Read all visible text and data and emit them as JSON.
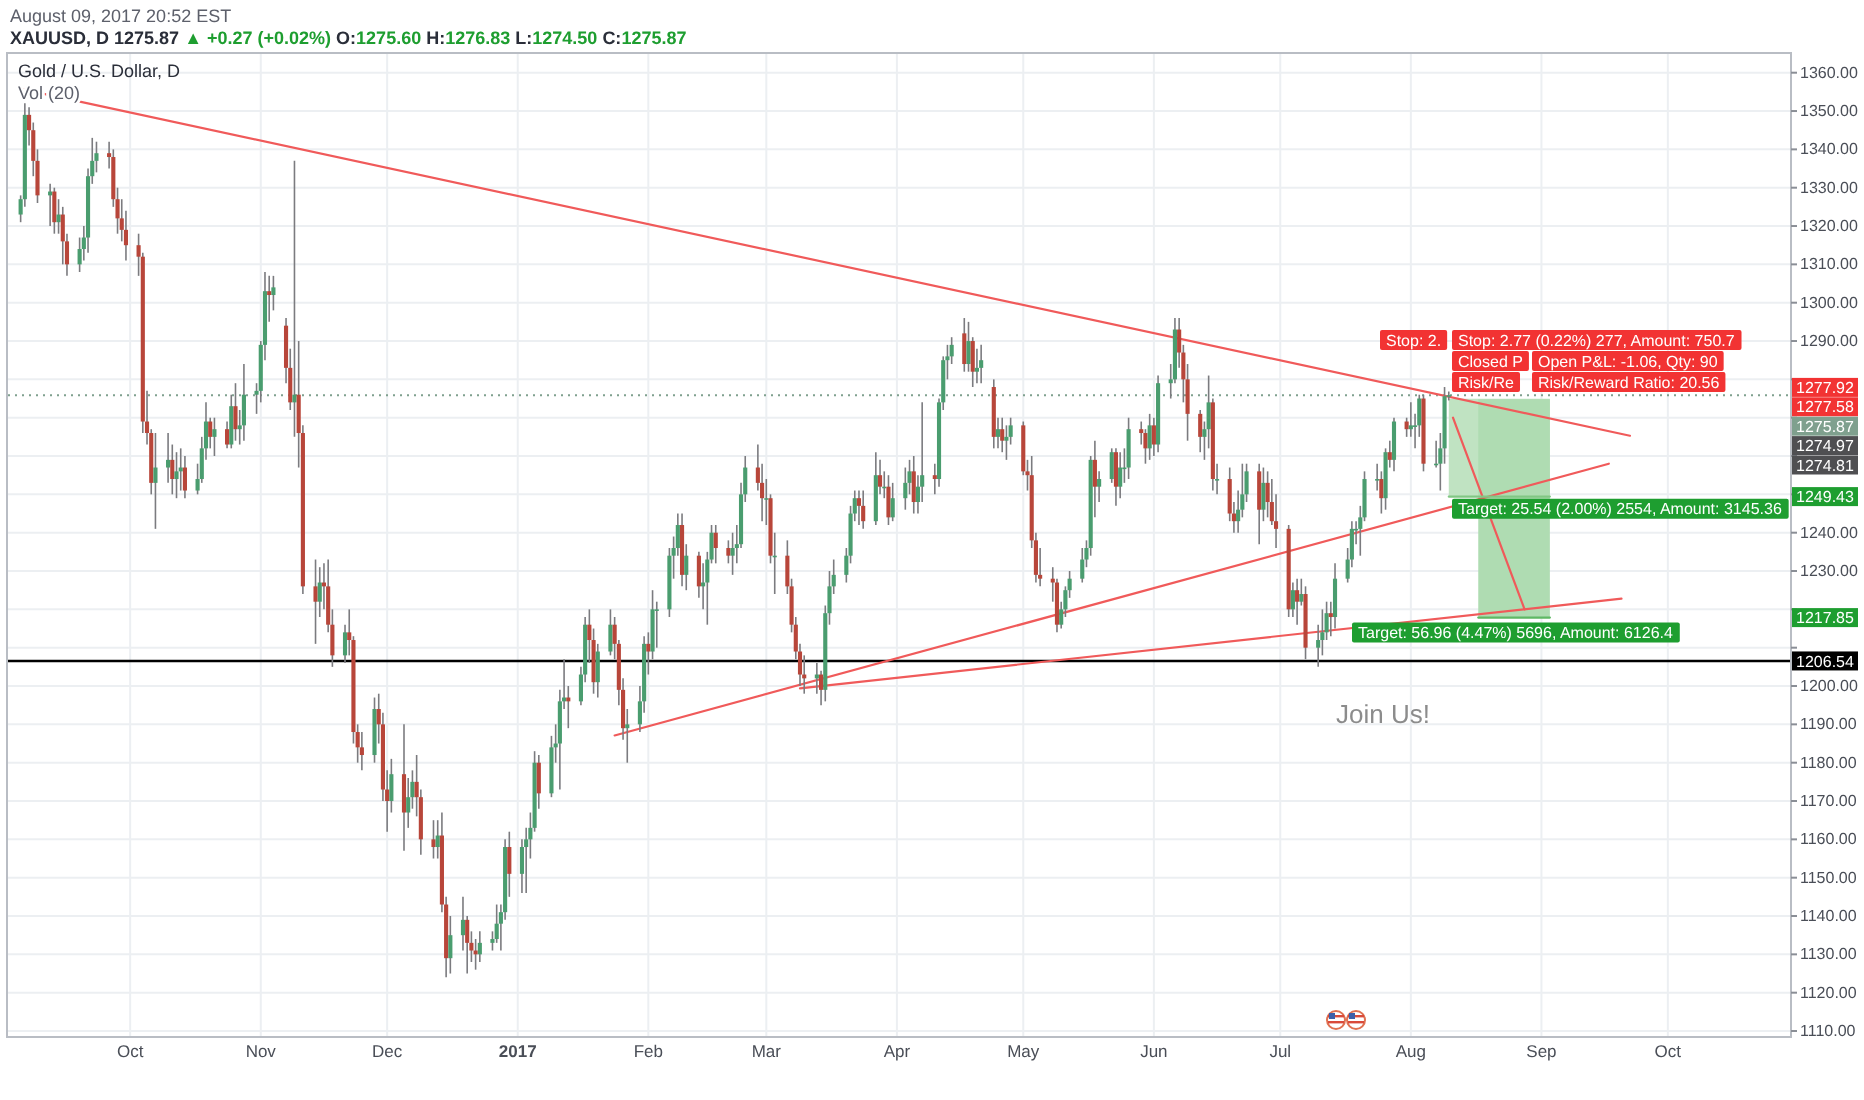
{
  "chart_data": {
    "type": "candlestick",
    "title": "Gold / U.S. Dollar, D",
    "subtitle": "XAUUSD, D 1275.87 ▲ +0.27 (+0.02%) O:1275.60 H:1276.83 L:1274.50 C:1275.87",
    "annotations": [
      "August 09, 2017 20:52 EST",
      "Vol (20)",
      "Join Us!",
      "Stop: 2.",
      "Stop: 2.77 (0.22%) 277, Amount: 750.7",
      "Closed P",
      "Open P&L: -1.06, Qty: 90",
      "Risk/Re",
      "Risk/Reward Ratio: 20.56",
      "Target: 25.54 (2.00%) 2554, Amount: 3145.36",
      "Target: 56.96 (4.47%) 5696, Amount: 6126.4",
      "1277.92",
      "1277.58",
      "1274.97",
      "1274.81",
      "1249.43",
      "1217.85"
    ],
    "x": [
      "2016-09-05",
      "2016-09-06",
      "2016-09-07",
      "2016-09-08",
      "2016-09-09",
      "2016-09-12",
      "2016-09-13",
      "2016-09-14",
      "2016-09-15",
      "2016-09-16",
      "2016-09-19",
      "2016-09-20",
      "2016-09-21",
      "2016-09-22",
      "2016-09-23",
      "2016-09-26",
      "2016-09-27",
      "2016-09-28",
      "2016-09-29",
      "2016-09-30",
      "2016-10-03",
      "2016-10-04",
      "2016-10-05",
      "2016-10-06",
      "2016-10-07",
      "2016-10-10",
      "2016-10-11",
      "2016-10-12",
      "2016-10-13",
      "2016-10-14",
      "2016-10-17",
      "2016-10-18",
      "2016-10-19",
      "2016-10-20",
      "2016-10-21",
      "2016-10-24",
      "2016-10-25",
      "2016-10-26",
      "2016-10-27",
      "2016-10-28",
      "2016-10-31",
      "2016-11-01",
      "2016-11-02",
      "2016-11-03",
      "2016-11-04",
      "2016-11-07",
      "2016-11-08",
      "2016-11-09",
      "2016-11-10",
      "2016-11-11",
      "2016-11-14",
      "2016-11-15",
      "2016-11-16",
      "2016-11-17",
      "2016-11-18",
      "2016-11-21",
      "2016-11-22",
      "2016-11-23",
      "2016-11-24",
      "2016-11-25",
      "2016-11-28",
      "2016-11-29",
      "2016-11-30",
      "2016-12-01",
      "2016-12-02",
      "2016-12-05",
      "2016-12-06",
      "2016-12-07",
      "2016-12-08",
      "2016-12-09",
      "2016-12-12",
      "2016-12-13",
      "2016-12-14",
      "2016-12-15",
      "2016-12-16",
      "2016-12-19",
      "2016-12-20",
      "2016-12-21",
      "2016-12-22",
      "2016-12-23",
      "2016-12-26",
      "2016-12-27",
      "2016-12-28",
      "2016-12-29",
      "2016-12-30",
      "2017-01-02",
      "2017-01-03",
      "2017-01-04",
      "2017-01-05",
      "2017-01-06",
      "2017-01-09",
      "2017-01-10",
      "2017-01-11",
      "2017-01-12",
      "2017-01-13",
      "2017-01-16",
      "2017-01-17",
      "2017-01-18",
      "2017-01-19",
      "2017-01-20",
      "2017-01-23",
      "2017-01-24",
      "2017-01-25",
      "2017-01-26",
      "2017-01-27",
      "2017-01-30",
      "2017-01-31",
      "2017-02-01",
      "2017-02-02",
      "2017-02-03",
      "2017-02-06",
      "2017-02-07",
      "2017-02-08",
      "2017-02-09",
      "2017-02-10",
      "2017-02-13",
      "2017-02-14",
      "2017-02-15",
      "2017-02-16",
      "2017-02-17",
      "2017-02-20",
      "2017-02-21",
      "2017-02-22",
      "2017-02-23",
      "2017-02-24",
      "2017-02-27",
      "2017-02-28",
      "2017-03-01",
      "2017-03-02",
      "2017-03-03",
      "2017-03-06",
      "2017-03-07",
      "2017-03-08",
      "2017-03-09",
      "2017-03-10",
      "2017-03-13",
      "2017-03-14",
      "2017-03-15",
      "2017-03-16",
      "2017-03-17",
      "2017-03-20",
      "2017-03-21",
      "2017-03-22",
      "2017-03-23",
      "2017-03-24",
      "2017-03-27",
      "2017-03-28",
      "2017-03-29",
      "2017-03-30",
      "2017-03-31",
      "2017-04-03",
      "2017-04-04",
      "2017-04-05",
      "2017-04-06",
      "2017-04-07",
      "2017-04-10",
      "2017-04-11",
      "2017-04-12",
      "2017-04-13",
      "2017-04-14",
      "2017-04-17",
      "2017-04-18",
      "2017-04-19",
      "2017-04-20",
      "2017-04-21",
      "2017-04-24",
      "2017-04-25",
      "2017-04-26",
      "2017-04-27",
      "2017-04-28",
      "2017-05-01",
      "2017-05-02",
      "2017-05-03",
      "2017-05-04",
      "2017-05-05",
      "2017-05-08",
      "2017-05-09",
      "2017-05-10",
      "2017-05-11",
      "2017-05-12",
      "2017-05-15",
      "2017-05-16",
      "2017-05-17",
      "2017-05-18",
      "2017-05-19",
      "2017-05-22",
      "2017-05-23",
      "2017-05-24",
      "2017-05-25",
      "2017-05-26",
      "2017-05-29",
      "2017-05-30",
      "2017-05-31",
      "2017-06-01",
      "2017-06-02",
      "2017-06-05",
      "2017-06-06",
      "2017-06-07",
      "2017-06-08",
      "2017-06-09",
      "2017-06-12",
      "2017-06-13",
      "2017-06-14",
      "2017-06-15",
      "2017-06-16",
      "2017-06-19",
      "2017-06-20",
      "2017-06-21",
      "2017-06-22",
      "2017-06-23",
      "2017-06-26",
      "2017-06-27",
      "2017-06-28",
      "2017-06-29",
      "2017-06-30",
      "2017-07-03",
      "2017-07-04",
      "2017-07-05",
      "2017-07-06",
      "2017-07-07",
      "2017-07-10",
      "2017-07-11",
      "2017-07-12",
      "2017-07-13",
      "2017-07-14",
      "2017-07-17",
      "2017-07-18",
      "2017-07-19",
      "2017-07-20",
      "2017-07-21",
      "2017-07-24",
      "2017-07-25",
      "2017-07-26",
      "2017-07-27",
      "2017-07-28",
      "2017-07-31",
      "2017-08-01",
      "2017-08-02",
      "2017-08-03",
      "2017-08-04",
      "2017-08-07",
      "2017-08-08",
      "2017-08-09",
      "2017-08-10"
    ],
    "ohlc": [
      [
        1323,
        1328,
        1321,
        1327
      ],
      [
        1327,
        1352,
        1325,
        1349
      ],
      [
        1349,
        1351,
        1341,
        1345
      ],
      [
        1345,
        1347,
        1333,
        1337
      ],
      [
        1337,
        1340,
        1326,
        1328
      ],
      [
        1328,
        1331,
        1320,
        1329
      ],
      [
        1329,
        1330,
        1318,
        1321
      ],
      [
        1321,
        1327,
        1318,
        1323
      ],
      [
        1323,
        1325,
        1310,
        1316
      ],
      [
        1316,
        1318,
        1307,
        1310
      ],
      [
        1310,
        1317,
        1308,
        1314
      ],
      [
        1314,
        1320,
        1311,
        1317
      ],
      [
        1317,
        1335,
        1313,
        1333
      ],
      [
        1333,
        1343,
        1331,
        1337
      ],
      [
        1337,
        1342,
        1334,
        1339
      ],
      [
        1339,
        1342,
        1335,
        1338
      ],
      [
        1338,
        1340,
        1325,
        1327
      ],
      [
        1327,
        1330,
        1318,
        1322
      ],
      [
        1322,
        1327,
        1316,
        1319
      ],
      [
        1319,
        1324,
        1311,
        1315
      ],
      [
        1315,
        1318,
        1307,
        1312
      ],
      [
        1312,
        1313,
        1266,
        1269
      ],
      [
        1269,
        1277,
        1263,
        1266
      ],
      [
        1266,
        1267,
        1250,
        1253
      ],
      [
        1253,
        1266,
        1241,
        1257
      ],
      [
        1257,
        1266,
        1253,
        1259
      ],
      [
        1259,
        1263,
        1250,
        1254
      ],
      [
        1254,
        1261,
        1249,
        1256
      ],
      [
        1256,
        1262,
        1251,
        1257
      ],
      [
        1257,
        1260,
        1249,
        1251
      ],
      [
        1251,
        1258,
        1250,
        1254
      ],
      [
        1254,
        1265,
        1253,
        1262
      ],
      [
        1262,
        1274,
        1259,
        1269
      ],
      [
        1269,
        1270,
        1262,
        1265
      ],
      [
        1265,
        1270,
        1260,
        1267
      ],
      [
        1267,
        1269,
        1262,
        1263
      ],
      [
        1263,
        1276,
        1262,
        1273
      ],
      [
        1273,
        1279,
        1264,
        1267
      ],
      [
        1267,
        1272,
        1263,
        1268
      ],
      [
        1268,
        1284,
        1264,
        1276
      ],
      [
        1276,
        1279,
        1271,
        1277
      ],
      [
        1277,
        1290,
        1274,
        1289
      ],
      [
        1289,
        1308,
        1285,
        1303
      ],
      [
        1303,
        1307,
        1295,
        1302
      ],
      [
        1302,
        1307,
        1298,
        1304
      ],
      [
        1294,
        1296,
        1279,
        1283
      ],
      [
        1283,
        1288,
        1272,
        1274
      ],
      [
        1274,
        1337,
        1265,
        1276
      ],
      [
        1276,
        1290,
        1257,
        1266
      ],
      [
        1266,
        1268,
        1224,
        1226
      ],
      [
        1226,
        1233,
        1211,
        1222
      ],
      [
        1222,
        1231,
        1218,
        1227
      ],
      [
        1227,
        1232,
        1220,
        1226
      ],
      [
        1226,
        1233,
        1214,
        1216
      ],
      [
        1216,
        1220,
        1205,
        1208
      ],
      [
        1208,
        1216,
        1206,
        1214
      ],
      [
        1214,
        1220,
        1208,
        1212
      ],
      [
        1212,
        1213,
        1185,
        1188
      ],
      [
        1188,
        1190,
        1180,
        1184
      ],
      [
        1184,
        1188,
        1178,
        1182
      ],
      [
        1182,
        1197,
        1180,
        1194
      ],
      [
        1194,
        1198,
        1185,
        1190
      ],
      [
        1190,
        1193,
        1170,
        1173
      ],
      [
        1173,
        1178,
        1162,
        1170
      ],
      [
        1170,
        1181,
        1167,
        1177
      ],
      [
        1177,
        1190,
        1157,
        1167
      ],
      [
        1167,
        1176,
        1163,
        1171
      ],
      [
        1171,
        1178,
        1168,
        1175
      ],
      [
        1175,
        1182,
        1166,
        1171
      ],
      [
        1171,
        1173,
        1156,
        1160
      ],
      [
        1160,
        1165,
        1155,
        1158
      ],
      [
        1158,
        1165,
        1155,
        1161
      ],
      [
        1161,
        1167,
        1141,
        1143
      ],
      [
        1143,
        1145,
        1124,
        1129
      ],
      [
        1129,
        1140,
        1125,
        1135
      ],
      [
        1135,
        1145,
        1131,
        1139
      ],
      [
        1139,
        1140,
        1125,
        1133
      ],
      [
        1133,
        1136,
        1128,
        1131
      ],
      [
        1131,
        1134,
        1126,
        1130
      ],
      [
        1130,
        1136,
        1128,
        1133
      ],
      [
        1133,
        1136,
        1131,
        1134
      ],
      [
        1134,
        1143,
        1133,
        1138
      ],
      [
        1138,
        1143,
        1131,
        1141
      ],
      [
        1141,
        1160,
        1139,
        1158
      ],
      [
        1158,
        1162,
        1145,
        1151
      ],
      [
        1151,
        1160,
        1146,
        1158
      ],
      [
        1158,
        1163,
        1146,
        1160
      ],
      [
        1160,
        1167,
        1155,
        1163
      ],
      [
        1163,
        1183,
        1162,
        1180
      ],
      [
        1180,
        1182,
        1168,
        1172
      ],
      [
        1172,
        1187,
        1171,
        1184
      ],
      [
        1184,
        1190,
        1180,
        1185
      ],
      [
        1185,
        1199,
        1173,
        1196
      ],
      [
        1196,
        1207,
        1194,
        1197
      ],
      [
        1197,
        1200,
        1189,
        1196
      ],
      [
        1196,
        1205,
        1195,
        1203
      ],
      [
        1203,
        1218,
        1201,
        1216
      ],
      [
        1216,
        1220,
        1206,
        1212
      ],
      [
        1212,
        1215,
        1198,
        1201
      ],
      [
        1201,
        1211,
        1197,
        1209
      ],
      [
        1209,
        1220,
        1208,
        1216
      ],
      [
        1216,
        1218,
        1207,
        1211
      ],
      [
        1211,
        1212,
        1195,
        1199
      ],
      [
        1199,
        1202,
        1186,
        1189
      ],
      [
        1189,
        1194,
        1180,
        1190
      ],
      [
        1190,
        1200,
        1188,
        1196
      ],
      [
        1196,
        1213,
        1193,
        1211
      ],
      [
        1211,
        1214,
        1203,
        1209
      ],
      [
        1209,
        1225,
        1207,
        1220
      ],
      [
        1220,
        1222,
        1210,
        1220
      ],
      [
        1220,
        1236,
        1218,
        1234
      ],
      [
        1234,
        1239,
        1228,
        1236
      ],
      [
        1236,
        1245,
        1234,
        1242
      ],
      [
        1242,
        1245,
        1226,
        1229
      ],
      [
        1229,
        1237,
        1225,
        1234
      ],
      [
        1234,
        1235,
        1223,
        1226
      ],
      [
        1226,
        1232,
        1220,
        1227
      ],
      [
        1227,
        1235,
        1216,
        1233
      ],
      [
        1233,
        1242,
        1232,
        1240
      ],
      [
        1240,
        1242,
        1232,
        1236
      ],
      [
        1236,
        1238,
        1232,
        1234
      ],
      [
        1234,
        1240,
        1229,
        1236
      ],
      [
        1236,
        1242,
        1232,
        1237
      ],
      [
        1237,
        1253,
        1236,
        1250
      ],
      [
        1250,
        1260,
        1248,
        1257
      ],
      [
        1257,
        1263,
        1251,
        1253
      ],
      [
        1253,
        1258,
        1243,
        1249
      ],
      [
        1249,
        1254,
        1242,
        1249
      ],
      [
        1249,
        1250,
        1232,
        1234
      ],
      [
        1234,
        1240,
        1224,
        1234
      ],
      [
        1234,
        1238,
        1224,
        1226
      ],
      [
        1226,
        1228,
        1214,
        1216
      ],
      [
        1216,
        1218,
        1207,
        1209
      ],
      [
        1209,
        1211,
        1200,
        1203
      ],
      [
        1203,
        1208,
        1198,
        1202
      ],
      [
        1202,
        1206,
        1198,
        1203
      ],
      [
        1203,
        1204,
        1195,
        1199
      ],
      [
        1199,
        1221,
        1196,
        1219
      ],
      [
        1219,
        1230,
        1216,
        1226
      ],
      [
        1226,
        1233,
        1224,
        1229
      ],
      [
        1229,
        1236,
        1227,
        1234
      ],
      [
        1234,
        1247,
        1232,
        1245
      ],
      [
        1245,
        1251,
        1243,
        1249
      ],
      [
        1249,
        1251,
        1242,
        1247
      ],
      [
        1247,
        1251,
        1241,
        1243
      ],
      [
        1243,
        1261,
        1242,
        1255
      ],
      [
        1255,
        1259,
        1250,
        1252
      ],
      [
        1252,
        1256,
        1249,
        1252
      ],
      [
        1252,
        1255,
        1242,
        1244
      ],
      [
        1244,
        1253,
        1243,
        1249
      ],
      [
        1249,
        1257,
        1246,
        1253
      ],
      [
        1253,
        1259,
        1250,
        1256
      ],
      [
        1256,
        1260,
        1245,
        1248
      ],
      [
        1248,
        1255,
        1245,
        1252
      ],
      [
        1252,
        1274,
        1248,
        1255
      ],
      [
        1255,
        1258,
        1250,
        1254
      ],
      [
        1254,
        1275,
        1252,
        1274
      ],
      [
        1274,
        1286,
        1272,
        1285
      ],
      [
        1285,
        1289,
        1280,
        1286
      ],
      [
        1286,
        1291,
        1284,
        1289
      ],
      [
        1292,
        1296,
        1282,
        1284
      ],
      [
        1284,
        1295,
        1282,
        1290
      ],
      [
        1290,
        1291,
        1278,
        1282
      ],
      [
        1282,
        1288,
        1279,
        1283
      ],
      [
        1283,
        1289,
        1279,
        1285
      ],
      [
        1278,
        1280,
        1262,
        1265
      ],
      [
        1265,
        1270,
        1262,
        1267
      ],
      [
        1267,
        1270,
        1261,
        1264
      ],
      [
        1264,
        1268,
        1259,
        1265
      ],
      [
        1265,
        1270,
        1263,
        1268
      ],
      [
        1268,
        1269,
        1255,
        1256
      ],
      [
        1256,
        1259,
        1251,
        1255
      ],
      [
        1255,
        1260,
        1236,
        1238
      ],
      [
        1238,
        1240,
        1227,
        1229
      ],
      [
        1229,
        1236,
        1226,
        1228
      ],
      [
        1228,
        1231,
        1222,
        1227
      ],
      [
        1227,
        1228,
        1214,
        1216
      ],
      [
        1216,
        1222,
        1215,
        1220
      ],
      [
        1220,
        1226,
        1218,
        1225
      ],
      [
        1225,
        1230,
        1223,
        1228
      ],
      [
        1228,
        1236,
        1227,
        1233
      ],
      [
        1233,
        1238,
        1231,
        1236
      ],
      [
        1236,
        1260,
        1234,
        1259
      ],
      [
        1259,
        1264,
        1244,
        1252
      ],
      [
        1252,
        1256,
        1248,
        1254
      ],
      [
        1254,
        1262,
        1253,
        1261
      ],
      [
        1261,
        1262,
        1247,
        1252
      ],
      [
        1252,
        1261,
        1249,
        1257
      ],
      [
        1257,
        1262,
        1253,
        1257
      ],
      [
        1257,
        1270,
        1254,
        1267
      ],
      [
        1267,
        1269,
        1263,
        1266
      ],
      [
        1266,
        1267,
        1258,
        1262
      ],
      [
        1262,
        1271,
        1259,
        1268
      ],
      [
        1268,
        1270,
        1260,
        1263
      ],
      [
        1263,
        1281,
        1261,
        1279
      ],
      [
        1279,
        1284,
        1275,
        1280
      ],
      [
        1280,
        1296,
        1279,
        1293
      ],
      [
        1293,
        1296,
        1283,
        1287
      ],
      [
        1287,
        1289,
        1274,
        1280
      ],
      [
        1280,
        1284,
        1264,
        1271
      ],
      [
        1271,
        1272,
        1261,
        1265
      ],
      [
        1265,
        1269,
        1259,
        1267
      ],
      [
        1267,
        1281,
        1262,
        1274
      ],
      [
        1274,
        1275,
        1251,
        1254
      ],
      [
        1254,
        1258,
        1250,
        1254
      ],
      [
        1254,
        1257,
        1243,
        1245
      ],
      [
        1245,
        1248,
        1240,
        1243
      ],
      [
        1243,
        1251,
        1240,
        1246
      ],
      [
        1246,
        1258,
        1244,
        1250
      ],
      [
        1250,
        1258,
        1248,
        1256
      ],
      [
        1256,
        1258,
        1237,
        1246
      ],
      [
        1246,
        1257,
        1243,
        1253
      ],
      [
        1253,
        1256,
        1244,
        1248
      ],
      [
        1248,
        1254,
        1242,
        1243
      ],
      [
        1243,
        1250,
        1236,
        1241
      ],
      [
        1241,
        1242,
        1218,
        1220
      ],
      [
        1220,
        1227,
        1218,
        1225
      ],
      [
        1225,
        1228,
        1216,
        1222
      ],
      [
        1222,
        1228,
        1221,
        1224
      ],
      [
        1224,
        1226,
        1207,
        1210
      ],
      [
        1210,
        1216,
        1205,
        1212
      ],
      [
        1212,
        1220,
        1208,
        1214
      ],
      [
        1214,
        1222,
        1212,
        1219
      ],
      [
        1219,
        1222,
        1213,
        1218
      ],
      [
        1218,
        1232,
        1215,
        1228
      ],
      [
        1228,
        1236,
        1227,
        1233
      ],
      [
        1233,
        1243,
        1231,
        1241
      ],
      [
        1241,
        1243,
        1237,
        1241
      ],
      [
        1241,
        1247,
        1234,
        1244
      ],
      [
        1244,
        1256,
        1243,
        1254
      ],
      [
        1254,
        1258,
        1251,
        1254
      ],
      [
        1254,
        1256,
        1245,
        1249
      ],
      [
        1249,
        1262,
        1246,
        1261
      ],
      [
        1261,
        1264,
        1257,
        1259
      ],
      [
        1259,
        1270,
        1256,
        1269
      ],
      [
        1269,
        1270,
        1265,
        1267
      ],
      [
        1267,
        1274,
        1265,
        1268
      ],
      [
        1268,
        1271,
        1262,
        1268
      ],
      [
        1268,
        1276,
        1265,
        1275
      ],
      [
        1275,
        1276,
        1256,
        1258
      ],
      [
        1258,
        1264,
        1257,
        1258
      ],
      [
        1258,
        1266,
        1251,
        1262
      ],
      [
        1262,
        1278,
        1258,
        1275.6
      ],
      [
        1275.6,
        1276.83,
        1274.5,
        1275.87
      ]
    ],
    "series": [
      {
        "type": "line",
        "color": "#f05a5a",
        "x": [
          "2016-09-05",
          "2017-09-22"
        ],
        "values": [
          1355.8,
          1265.3
        ]
      },
      {
        "type": "line",
        "color": "#f05a5a",
        "x": [
          "2017-01-24",
          "2017-09-17"
        ],
        "values": [
          1187.1,
          1258
        ]
      },
      {
        "type": "line",
        "color": "#f05a5a",
        "x": [
          "2017-03-09",
          "2017-09-20"
        ],
        "values": [
          1199.4,
          1222.8
        ]
      },
      {
        "type": "line",
        "color": "#f05a5a",
        "x": [
          "2017-08-11",
          "2017-08-28"
        ],
        "values": [
          1270,
          1220
        ]
      },
      {
        "type": "line",
        "color": "#81c784",
        "x": [
          "2017-08-10",
          "2017-09-03"
        ],
        "values": [
          1249.43,
          1249.43
        ],
        "lower": [
          1249.43,
          1249.43
        ],
        "upper": [
          1274.97,
          1274.97
        ]
      },
      {
        "type": "line",
        "color": "#5fb864",
        "x": [
          "2017-08-17",
          "2017-09-03"
        ],
        "values": [
          1217.85,
          1217.85
        ],
        "lower": [
          1217.85,
          1217.85
        ],
        "upper": [
          1274.81,
          1274.81
        ]
      }
    ],
    "ref_lines": [
      {
        "axis": "y",
        "value": 1275.87,
        "label": "1275.87",
        "line_style": "dotted",
        "color": "#7fa08e"
      },
      {
        "axis": "y",
        "value": 1206.54,
        "label": "1206.54",
        "color": "#000000"
      }
    ],
    "xlim": [
      "2016-09-02",
      "2017-10-30"
    ],
    "xticks": [
      {
        "value": "2016-10-01",
        "label": "Oct"
      },
      {
        "value": "2016-11-01",
        "label": "Nov"
      },
      {
        "value": "2016-12-01",
        "label": "Dec"
      },
      {
        "value": "2017-01-01",
        "label": "2017"
      },
      {
        "value": "2017-02-01",
        "label": "Feb"
      },
      {
        "value": "2017-03-01",
        "label": "Mar"
      },
      {
        "value": "2017-04-01",
        "label": "Apr"
      },
      {
        "value": "2017-05-01",
        "label": "May"
      },
      {
        "value": "2017-06-01",
        "label": "Jun"
      },
      {
        "value": "2017-07-01",
        "label": "Jul"
      },
      {
        "value": "2017-08-01",
        "label": "Aug"
      },
      {
        "value": "2017-09-01",
        "label": "Sep"
      },
      {
        "value": "2017-10-01",
        "label": "Oct"
      }
    ],
    "ylim": [
      1108.7,
      1365.4
    ],
    "yticks": [
      {
        "value": 1110,
        "label": "1110.00"
      },
      {
        "value": 1120,
        "label": "1120.00"
      },
      {
        "value": 1130,
        "label": "1130.00"
      },
      {
        "value": 1140,
        "label": "1140.00"
      },
      {
        "value": 1150,
        "label": "1150.00"
      },
      {
        "value": 1160,
        "label": "1160.00"
      },
      {
        "value": 1170,
        "label": "1170.00"
      },
      {
        "value": 1180,
        "label": "1180.00"
      },
      {
        "value": 1190,
        "label": "1190.00"
      },
      {
        "value": 1200,
        "label": "1200.00"
      },
      {
        "value": 1210,
        "label": null
      },
      {
        "value": 1220,
        "label": null
      },
      {
        "value": 1230,
        "label": "1230.00"
      },
      {
        "value": 1240,
        "label": "1240.00"
      },
      {
        "value": 1250,
        "label": null
      },
      {
        "value": 1260,
        "label": null
      },
      {
        "value": 1270,
        "label": null
      },
      {
        "value": 1280,
        "label": null
      },
      {
        "value": 1290,
        "label": "1290.00"
      },
      {
        "value": 1300,
        "label": "1300.00"
      },
      {
        "value": 1310,
        "label": "1310.00"
      },
      {
        "value": 1320,
        "label": "1320.00"
      },
      {
        "value": 1330,
        "label": "1330.00"
      },
      {
        "value": 1340,
        "label": "1340.00"
      },
      {
        "value": 1350,
        "label": "1350.00"
      },
      {
        "value": 1360,
        "label": "1360.00"
      }
    ],
    "grid": true
  }
}
